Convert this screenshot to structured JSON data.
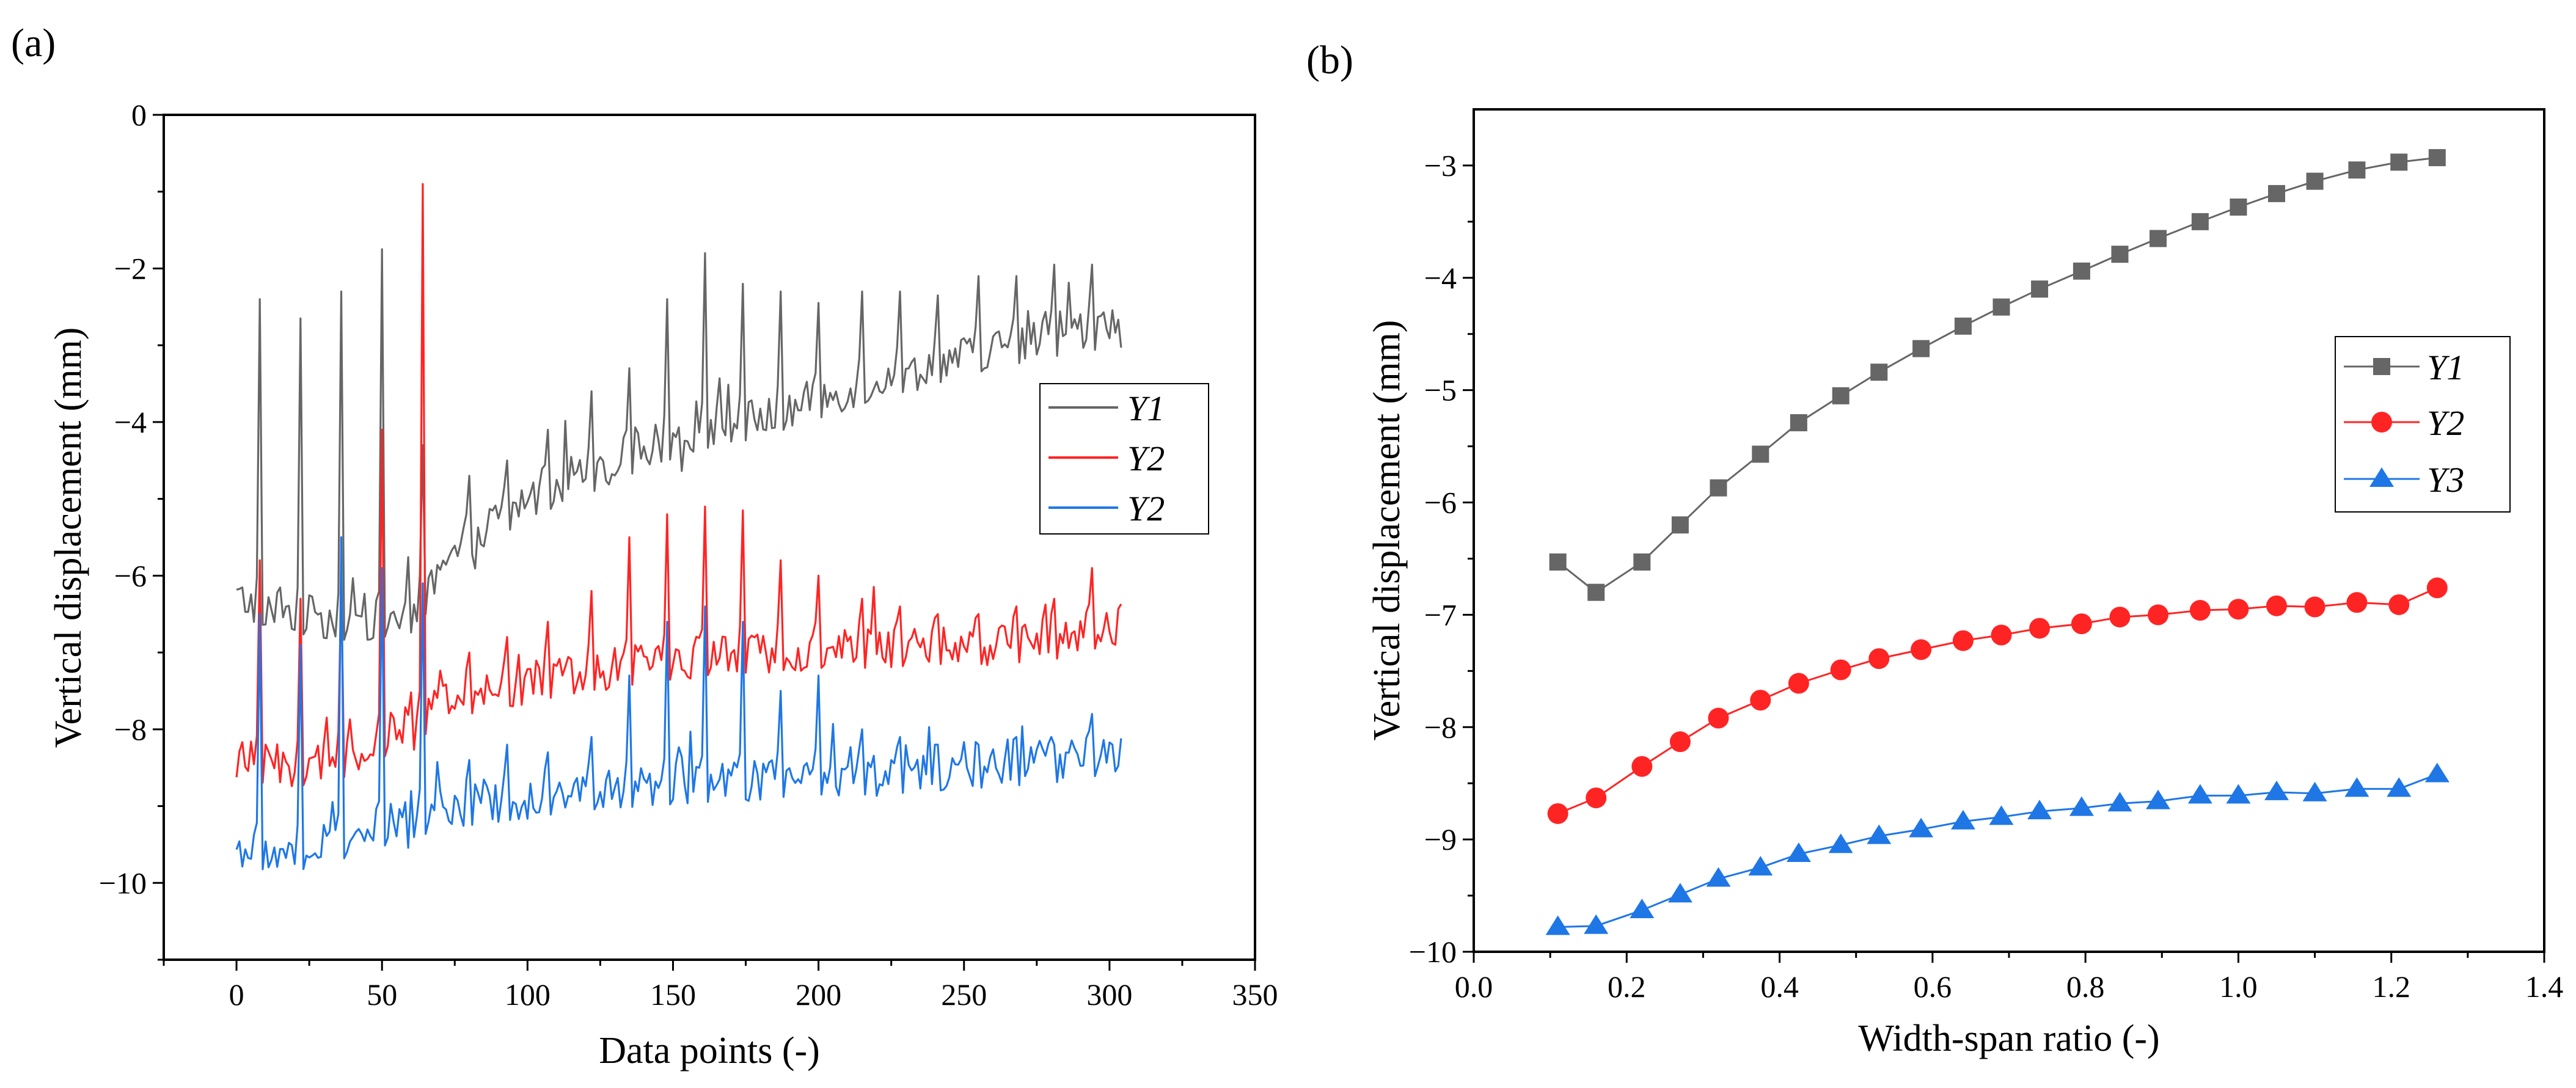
{
  "chart_data": [
    {
      "panel_label": "(a)",
      "type": "line",
      "xlabel": "Data points (-)",
      "ylabel": "Vertical displacement (mm)",
      "xlim": [
        -25,
        350
      ],
      "ylim": [
        -11,
        0
      ],
      "xticks": [
        0,
        50,
        100,
        150,
        200,
        250,
        300,
        350
      ],
      "xtick_labels": [
        "0",
        "50",
        "100",
        "150",
        "200",
        "250",
        "300",
        "350"
      ],
      "yticks": [
        -10,
        -8,
        -6,
        -4,
        -2,
        0
      ],
      "ytick_labels": [
        "−10",
        "−8",
        "−6",
        "−4",
        "−2",
        "0"
      ],
      "legend_position": "right",
      "n_points": 305,
      "spike_x": [
        8,
        22,
        36,
        50,
        64,
        80,
        93,
        107,
        122,
        135,
        148,
        161,
        174,
        187,
        200,
        215,
        228,
        241,
        255,
        268,
        281,
        294
      ],
      "series": [
        {
          "name": "Y1",
          "color": "#666666",
          "trend": {
            "x": [
              0,
              20,
              40,
              60,
              80,
              100,
              120,
              140,
              160,
              180,
              200,
              220,
              240,
              260,
              280,
              305
            ],
            "y": [
              -6.3,
              -6.5,
              -6.6,
              -6.5,
              -5.5,
              -5.0,
              -4.7,
              -4.35,
              -4.1,
              -3.95,
              -3.7,
              -3.45,
              -3.25,
              -3.05,
              -2.9,
              -2.75
            ]
          },
          "spike_tops": [
            -2.4,
            -2.65,
            -2.3,
            -1.75,
            -4.3,
            -4.7,
            -4.5,
            -4.1,
            -3.6,
            -3.3,
            -2.4,
            -1.8,
            -2.2,
            -2.3,
            -2.45,
            -2.3,
            -2.3,
            -2.35,
            -2.1,
            -2.1,
            -1.95,
            -1.95
          ]
        },
        {
          "name": "Y2",
          "color": "#ff2424",
          "trend": {
            "x": [
              0,
              20,
              40,
              60,
              80,
              100,
              120,
              140,
              160,
              180,
              200,
              220,
              240,
              260,
              280,
              305
            ],
            "y": [
              -8.4,
              -8.5,
              -8.35,
              -7.9,
              -7.55,
              -7.4,
              -7.25,
              -7.15,
              -7.05,
              -7.0,
              -6.95,
              -6.95,
              -6.9,
              -6.9,
              -6.85,
              -6.6
            ]
          },
          "spike_tops": [
            -5.8,
            -6.3,
            -6.1,
            -4.1,
            -0.9,
            -7.0,
            -6.8,
            -6.6,
            -6.2,
            -5.5,
            -5.2,
            -5.1,
            -5.15,
            -5.8,
            -6.0,
            -6.3,
            -6.4,
            -6.5,
            -6.5,
            -6.4,
            -6.3,
            -5.9
          ]
        },
        {
          "name": "Y2",
          "color": "#1f77e6",
          "trend": {
            "x": [
              0,
              20,
              40,
              60,
              80,
              100,
              120,
              140,
              160,
              180,
              200,
              220,
              240,
              260,
              280,
              305
            ],
            "y": [
              -9.55,
              -9.6,
              -9.4,
              -9.15,
              -9.0,
              -8.9,
              -8.8,
              -8.75,
              -8.7,
              -8.65,
              -8.6,
              -8.6,
              -8.55,
              -8.5,
              -8.45,
              -8.3
            ]
          },
          "spike_tops": [
            -6.5,
            -6.9,
            -5.5,
            -5.9,
            -6.1,
            -8.4,
            -8.2,
            -8.3,
            -8.1,
            -7.3,
            -6.6,
            -6.4,
            -6.6,
            -7.5,
            -7.3,
            -8.0,
            -8.1,
            -8.2,
            -8.2,
            -8.1,
            -8.2,
            -7.8
          ]
        }
      ]
    },
    {
      "panel_label": "(b)",
      "type": "line",
      "xlabel": "Width-span ratio (-)",
      "ylabel": "Vertical displacement (mm)",
      "xlim": [
        0.0,
        1.4
      ],
      "ylim": [
        -10,
        -2.5
      ],
      "xticks": [
        0.0,
        0.2,
        0.4,
        0.6,
        0.8,
        1.0,
        1.2,
        1.4
      ],
      "xtick_labels": [
        "0.0",
        "0.2",
        "0.4",
        "0.6",
        "0.8",
        "1.0",
        "1.2",
        "1.4"
      ],
      "yticks": [
        -10,
        -9,
        -8,
        -7,
        -6,
        -5,
        -4,
        -3
      ],
      "ytick_labels": [
        "−10",
        "−9",
        "−8",
        "−7",
        "−6",
        "−5",
        "−4",
        "−3"
      ],
      "legend_position": "right",
      "x": [
        0.11,
        0.16,
        0.22,
        0.27,
        0.32,
        0.375,
        0.425,
        0.48,
        0.53,
        0.585,
        0.64,
        0.69,
        0.74,
        0.795,
        0.845,
        0.895,
        0.95,
        1.0,
        1.05,
        1.1,
        1.155,
        1.21,
        1.26
      ],
      "series": [
        {
          "name": "Y1",
          "color": "#666666",
          "marker": "square",
          "values": [
            -6.53,
            -6.8,
            -6.53,
            -6.2,
            -5.87,
            -5.57,
            -5.29,
            -5.05,
            -4.84,
            -4.63,
            -4.43,
            -4.26,
            -4.1,
            -3.94,
            -3.79,
            -3.65,
            -3.5,
            -3.37,
            -3.25,
            -3.14,
            -3.04,
            -2.97,
            -2.93
          ]
        },
        {
          "name": "Y2",
          "color": "#ff2424",
          "marker": "circle",
          "values": [
            -8.77,
            -8.63,
            -8.35,
            -8.13,
            -7.92,
            -7.76,
            -7.61,
            -7.49,
            -7.39,
            -7.31,
            -7.23,
            -7.18,
            -7.12,
            -7.08,
            -7.02,
            -7.0,
            -6.96,
            -6.95,
            -6.92,
            -6.93,
            -6.89,
            -6.91,
            -6.76
          ]
        },
        {
          "name": "Y3",
          "color": "#1f77e6",
          "marker": "triangle",
          "values": [
            -9.78,
            -9.77,
            -9.63,
            -9.49,
            -9.35,
            -9.25,
            -9.13,
            -9.05,
            -8.97,
            -8.91,
            -8.84,
            -8.8,
            -8.75,
            -8.72,
            -8.68,
            -8.66,
            -8.61,
            -8.61,
            -8.58,
            -8.59,
            -8.55,
            -8.55,
            -8.42
          ]
        }
      ]
    }
  ]
}
